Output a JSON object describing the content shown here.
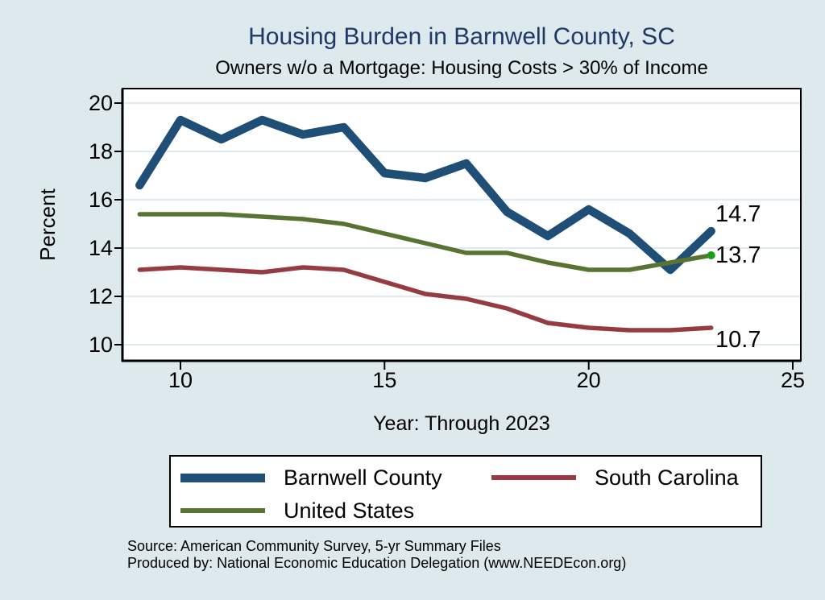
{
  "header": {
    "title": "Housing Burden in Barnwell County, SC",
    "subtitle": "Owners w/o a Mortgage: Housing Costs > 30% of Income"
  },
  "chart_data": {
    "type": "line",
    "title": "Housing Burden in Barnwell County, SC",
    "subtitle": "Owners w/o a Mortgage: Housing Costs > 30% of Income",
    "xlabel": "Year: Through 2023",
    "ylabel": "Percent",
    "x": [
      9,
      10,
      11,
      12,
      13,
      14,
      15,
      16,
      17,
      18,
      19,
      20,
      21,
      22,
      23
    ],
    "x_ticks": [
      10,
      15,
      20,
      25
    ],
    "y_ticks": [
      10,
      12,
      14,
      16,
      18,
      20
    ],
    "xlim": [
      8.58,
      25.2
    ],
    "ylim": [
      9.33,
      20.6
    ],
    "grid": true,
    "legend_position": "bottom",
    "plot_bg": "#ffffff",
    "grid_color": "#dfeaf2",
    "series": [
      {
        "name": "Barnwell County",
        "color": "#1f4e77",
        "line_width": 10.5,
        "values": [
          16.6,
          19.3,
          18.5,
          19.3,
          18.7,
          19.0,
          17.1,
          16.9,
          17.5,
          15.5,
          14.5,
          15.6,
          14.6,
          13.1,
          14.7
        ],
        "end_label": "14.7"
      },
      {
        "name": "South Carolina",
        "color": "#963b42",
        "line_width": 5.5,
        "values": [
          13.1,
          13.2,
          13.1,
          13.0,
          13.2,
          13.1,
          12.6,
          12.1,
          11.9,
          11.5,
          10.9,
          10.7,
          10.6,
          10.6,
          10.7
        ],
        "end_label": "10.7"
      },
      {
        "name": "United States",
        "color": "#587432",
        "line_width": 5.5,
        "values": [
          15.4,
          15.4,
          15.4,
          15.3,
          15.2,
          15.0,
          14.6,
          14.2,
          13.8,
          13.8,
          13.4,
          13.1,
          13.1,
          13.4,
          13.7
        ],
        "end_label": "13.7",
        "end_dot_color": "#17a017"
      }
    ]
  },
  "legend": {
    "items": [
      {
        "label": "Barnwell County",
        "color": "#1f4e77",
        "swatch_height": 11
      },
      {
        "label": "South Carolina",
        "color": "#963b42",
        "swatch_height": 6
      },
      {
        "label": "United States",
        "color": "#587432",
        "swatch_height": 6
      }
    ]
  },
  "footer": {
    "source_line1": "Source: American Community Survey, 5-yr Summary Files",
    "source_line2": "Produced by: National Economic Education Delegation (www.NEEDEcon.org)"
  }
}
